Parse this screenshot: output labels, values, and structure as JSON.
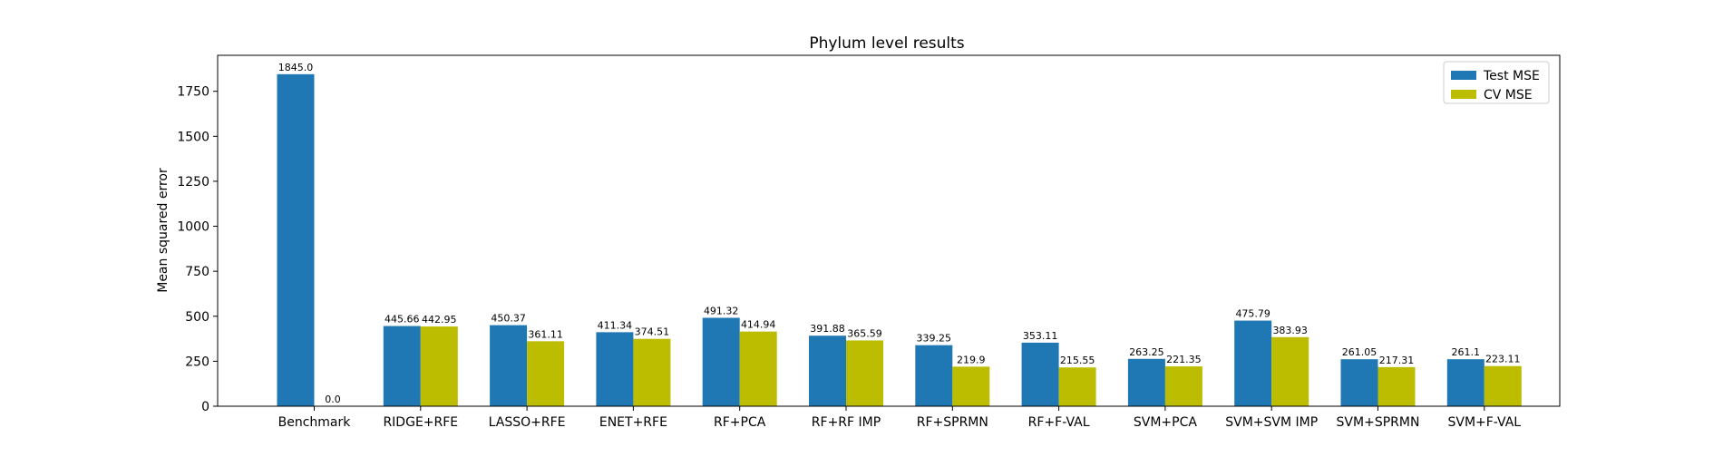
{
  "chart_data": {
    "type": "bar",
    "title": "Phylum level results",
    "xlabel": "",
    "ylabel": "Mean squared error",
    "ylim": [
      0,
      1950
    ],
    "yticks": [
      0,
      250,
      500,
      750,
      1000,
      1250,
      1500,
      1750
    ],
    "categories": [
      "Benchmark",
      "RIDGE+RFE",
      "LASSO+RFE",
      "ENET+RFE",
      "RF+PCA",
      "RF+RF IMP",
      "RF+SPRMN",
      "RF+F-VAL",
      "SVM+PCA",
      "SVM+SVM IMP",
      "SVM+SPRMN",
      "SVM+F-VAL"
    ],
    "series": [
      {
        "name": "Test MSE",
        "color": "#1f77b4",
        "values": [
          1845.0,
          445.66,
          450.37,
          411.34,
          491.32,
          391.88,
          339.25,
          353.11,
          263.25,
          475.79,
          261.05,
          261.1
        ],
        "labels": [
          "1845.0",
          "445.66",
          "450.37",
          "411.34",
          "491.32",
          "391.88",
          "339.25",
          "353.11",
          "263.25",
          "475.79",
          "261.05",
          "261.1"
        ]
      },
      {
        "name": "CV MSE",
        "color": "#bcbd00",
        "values": [
          0.0,
          442.95,
          361.11,
          374.51,
          414.94,
          365.59,
          219.9,
          215.55,
          221.35,
          383.93,
          217.31,
          223.11
        ],
        "labels": [
          "0.0",
          "442.95",
          "361.11",
          "374.51",
          "414.94",
          "365.59",
          "219.9",
          "215.55",
          "221.35",
          "383.93",
          "217.31",
          "223.11"
        ]
      }
    ],
    "legend_position": "top-right",
    "grid": false
  }
}
